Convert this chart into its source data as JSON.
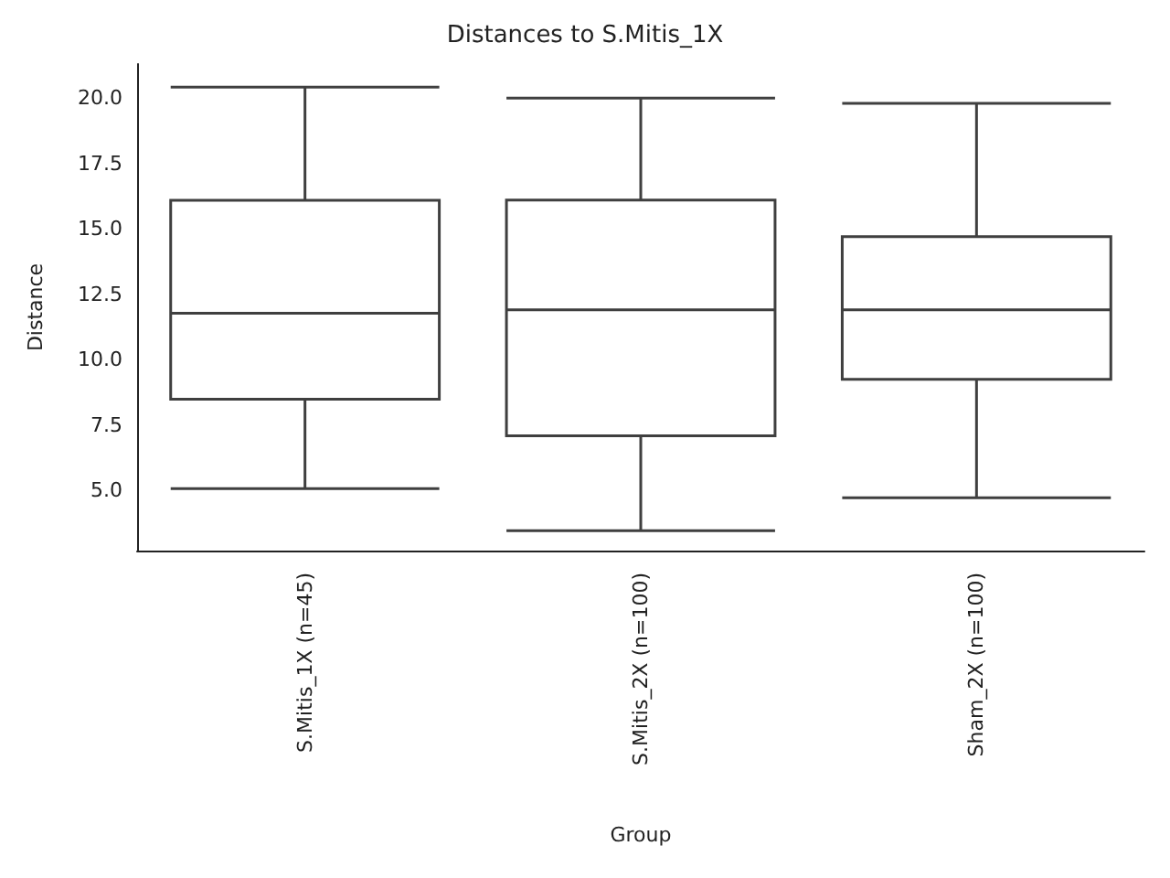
{
  "chart_data": {
    "type": "box",
    "title": "Distances to S.Mitis_1X",
    "xlabel": "Group",
    "ylabel": "Distance",
    "categories": [
      "S.Mitis_1X (n=45)",
      "S.Mitis_2X (n=100)",
      "Sham_2X (n=100)"
    ],
    "series": [
      {
        "color": "#3f3f3f",
        "boxes": [
          {
            "low": 5.07,
            "q1": 8.49,
            "median": 11.77,
            "q3": 16.09,
            "high": 20.42
          },
          {
            "low": 3.46,
            "q1": 7.09,
            "median": 11.9,
            "q3": 16.1,
            "high": 20.0
          },
          {
            "low": 4.72,
            "q1": 9.25,
            "median": 11.9,
            "q3": 14.7,
            "high": 19.8
          }
        ]
      }
    ],
    "ylim": [
      2.7,
      21.3
    ],
    "yticks": [
      {
        "value": 5,
        "label": "5.0"
      },
      {
        "value": 7.5,
        "label": "7.5"
      },
      {
        "value": 10,
        "label": "10.0"
      },
      {
        "value": 12.5,
        "label": "12.5"
      },
      {
        "value": 15,
        "label": "15.0"
      },
      {
        "value": 17.5,
        "label": "17.5"
      },
      {
        "value": 20,
        "label": "20.0"
      }
    ],
    "grid": false
  }
}
